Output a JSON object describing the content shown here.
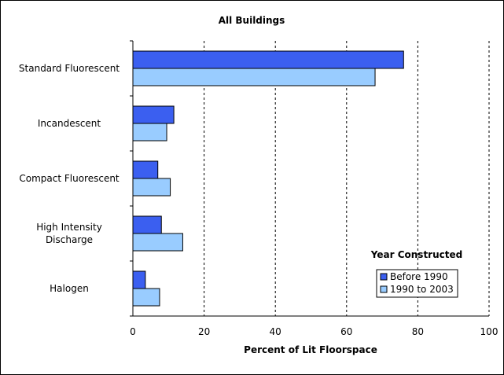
{
  "chart_data": {
    "type": "bar",
    "orientation": "horizontal",
    "title": "All Buildings",
    "xlabel": "Percent of Lit Floorspace",
    "ylabel": "",
    "xlim": [
      0,
      100
    ],
    "xticks": [
      0,
      20,
      40,
      60,
      80,
      100
    ],
    "grid": "vertical dashed",
    "categories": [
      [
        "Standard Fluorescent"
      ],
      [
        "Incandescent"
      ],
      [
        "Compact Fluorescent"
      ],
      [
        "High Intensity",
        "Discharge"
      ],
      [
        "Halogen"
      ]
    ],
    "legend": {
      "title": "Year Constructed",
      "placement": "bottom-right"
    },
    "series": [
      {
        "name": "Before 1990",
        "color": "#3b5ff0",
        "values": [
          76,
          11.5,
          7,
          8,
          3.5
        ]
      },
      {
        "name": "1990 to 2003",
        "color": "#99ccff",
        "values": [
          68,
          9.5,
          10.5,
          14,
          7.5
        ]
      }
    ]
  }
}
